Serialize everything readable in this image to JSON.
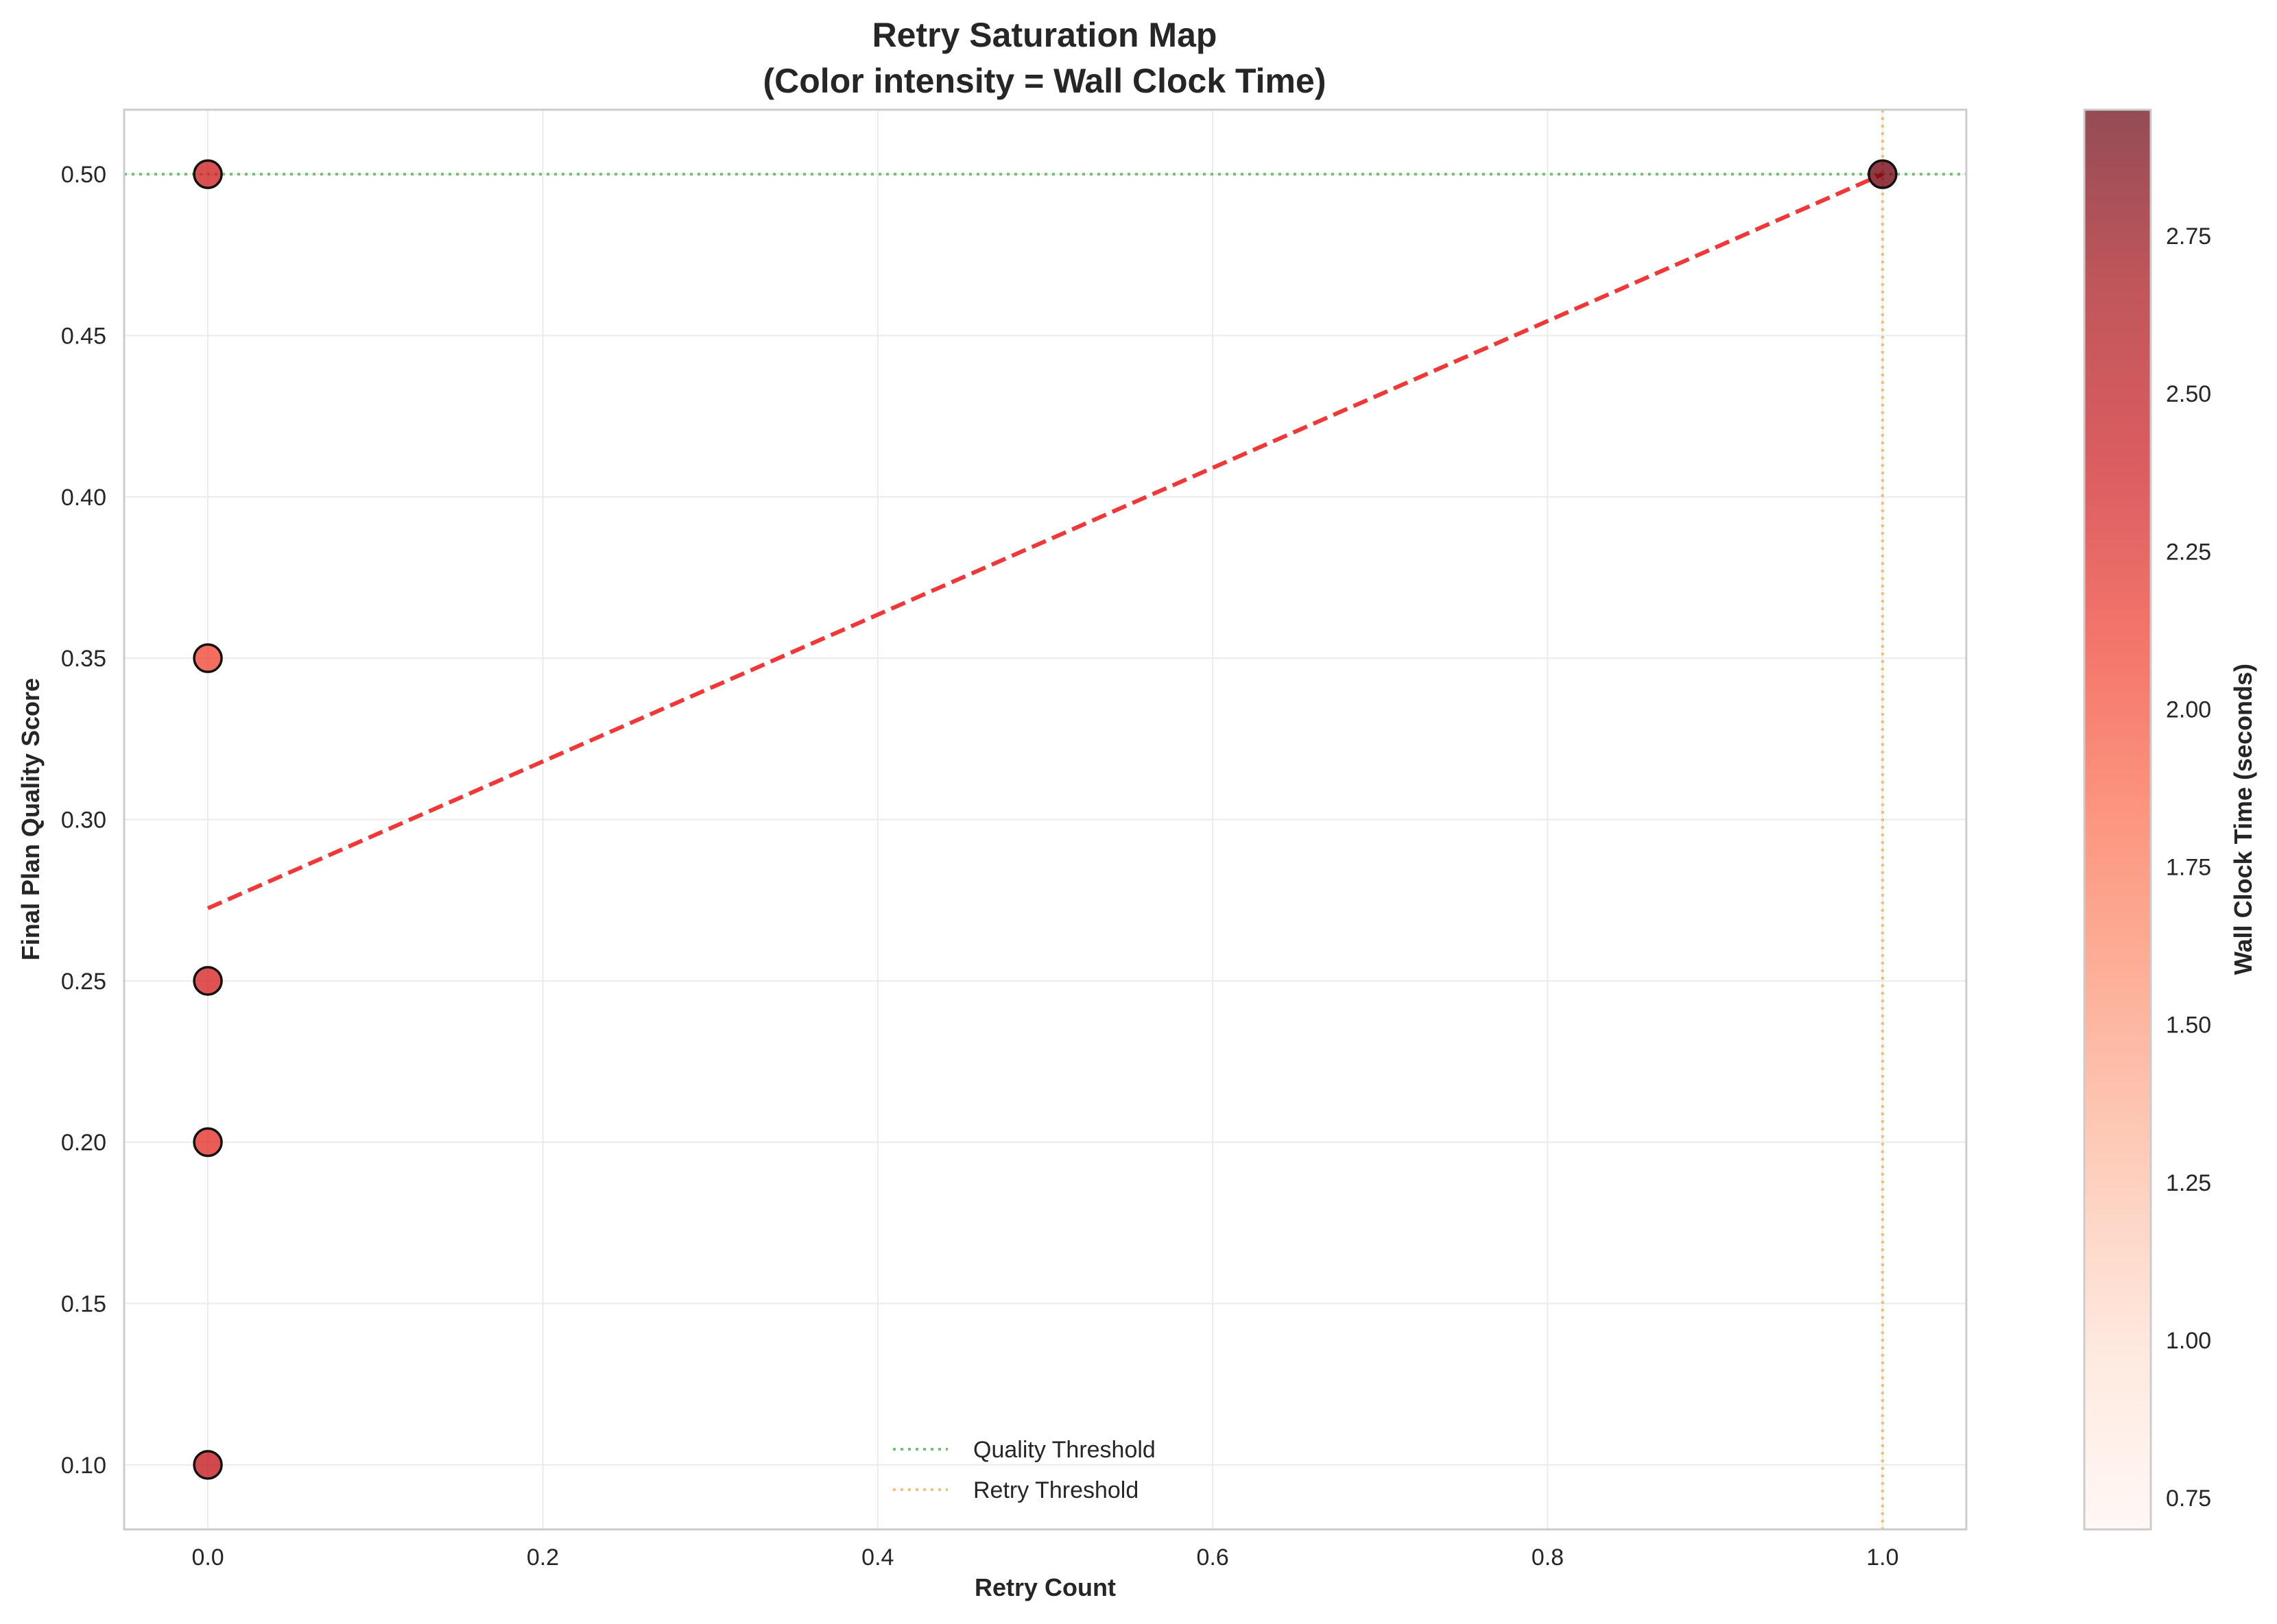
{
  "chart_data": {
    "type": "scatter",
    "title": "Retry Saturation Map",
    "subtitle": "(Color intensity = Wall Clock Time)",
    "xlabel": "Retry Count",
    "ylabel": "Final Plan Quality Score",
    "xlim": [
      -0.05,
      1.05
    ],
    "ylim": [
      0.08,
      0.52
    ],
    "xticks": [
      "0.0",
      "0.2",
      "0.4",
      "0.6",
      "0.8",
      "1.0"
    ],
    "yticks": [
      "0.10",
      "0.15",
      "0.20",
      "0.25",
      "0.30",
      "0.35",
      "0.40",
      "0.45",
      "0.50"
    ],
    "grid": true,
    "points": [
      {
        "x": 0.0,
        "y": 0.5,
        "c": 2.35
      },
      {
        "x": 0.0,
        "y": 0.35,
        "c": 2.05
      },
      {
        "x": 0.0,
        "y": 0.25,
        "c": 2.3
      },
      {
        "x": 0.0,
        "y": 0.2,
        "c": 2.2
      },
      {
        "x": 0.0,
        "y": 0.1,
        "c": 2.45
      },
      {
        "x": 1.0,
        "y": 0.5,
        "c": 2.9
      }
    ],
    "trend_line": {
      "x": [
        0.0,
        1.0
      ],
      "y": [
        0.2725,
        0.5
      ],
      "color": "#ee2222",
      "style": "dashed"
    },
    "reference_lines": [
      {
        "name": "Quality Threshold",
        "orientation": "horizontal",
        "value": 0.5,
        "color": "#5cb85c",
        "style": "dotted"
      },
      {
        "name": "Retry Threshold",
        "orientation": "vertical",
        "value": 1.0,
        "color": "#f0ad4e",
        "style": "dotted"
      }
    ],
    "legend_position": "bottom-center",
    "colorbar": {
      "label": "Wall Clock Time (seconds)",
      "range": [
        0.7,
        2.95
      ],
      "ticks": [
        "0.75",
        "1.00",
        "1.25",
        "1.50",
        "1.75",
        "2.00",
        "2.25",
        "2.50",
        "2.75"
      ],
      "colormap": "Reds"
    }
  }
}
